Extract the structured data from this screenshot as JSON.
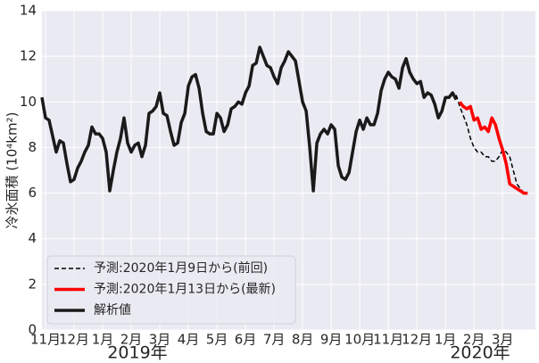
{
  "chart_data": {
    "type": "line",
    "ylabel": "冷氷面積 (10⁴km²)",
    "annotations": [
      "2019年",
      "2020年"
    ],
    "xlim": [
      -0.125,
      17.15
    ],
    "ylim": [
      0,
      14
    ],
    "yticks": [
      0,
      2,
      4,
      6,
      8,
      10,
      12,
      14
    ],
    "xticks": [
      {
        "value": 0,
        "label": "11月"
      },
      {
        "value": 1,
        "label": "12月"
      },
      {
        "value": 2,
        "label": "1月"
      },
      {
        "value": 3,
        "label": "2月"
      },
      {
        "value": 4,
        "label": "3月"
      },
      {
        "value": 5,
        "label": "4月"
      },
      {
        "value": 6,
        "label": "5月"
      },
      {
        "value": 7,
        "label": "6月"
      },
      {
        "value": 8,
        "label": "7月"
      },
      {
        "value": 9,
        "label": "8月"
      },
      {
        "value": 10,
        "label": "9月"
      },
      {
        "value": 11,
        "label": "10月"
      },
      {
        "value": 12,
        "label": "11月"
      },
      {
        "value": 13,
        "label": "12月"
      },
      {
        "value": 14,
        "label": "1月"
      },
      {
        "value": 15,
        "label": "2月"
      },
      {
        "value": 16,
        "label": "3月"
      }
    ],
    "grid": true,
    "legend": "lower left",
    "series": [
      {
        "name": "予測:2020年1月9日から(前回)",
        "color": "#000000",
        "dash": true,
        "width": 1.5,
        "x": [
          14.375,
          14.5,
          14.625,
          14.75,
          14.875,
          15,
          15.125,
          15.25,
          15.375,
          15.5,
          15.625,
          15.75,
          15.875,
          16,
          16.125,
          16.25,
          16.375,
          16.5,
          16.625,
          16.75,
          16.875
        ],
        "values": [
          10.3,
          9.8,
          9.4,
          9.0,
          8.4,
          8.0,
          7.8,
          7.8,
          7.6,
          7.6,
          7.4,
          7.4,
          7.6,
          7.9,
          7.8,
          7.6,
          7.0,
          6.4,
          6.2,
          6.0,
          6.0
        ]
      },
      {
        "name": "予測:2020年1月13日から(最新)",
        "color": "#ff0000",
        "dash": false,
        "width": 3.5,
        "x": [
          14.5,
          14.625,
          14.75,
          14.875,
          15,
          15.125,
          15.25,
          15.375,
          15.5,
          15.625,
          15.75,
          15.875,
          16,
          16.125,
          16.25,
          16.375,
          16.5,
          16.625,
          16.75,
          16.875
        ],
        "values": [
          10.0,
          9.8,
          9.7,
          9.8,
          9.2,
          9.3,
          8.8,
          8.9,
          8.7,
          9.3,
          9.0,
          8.4,
          7.9,
          7.3,
          6.4,
          6.3,
          6.2,
          6.1,
          6.0,
          6.0
        ]
      },
      {
        "name": "解析値",
        "color": "#1a1a1a",
        "dash": false,
        "width": 3.5,
        "x": [
          -0.125,
          0,
          0.125,
          0.25,
          0.375,
          0.5,
          0.625,
          0.75,
          0.875,
          1,
          1.125,
          1.25,
          1.375,
          1.5,
          1.625,
          1.75,
          1.875,
          2,
          2.125,
          2.25,
          2.375,
          2.5,
          2.625,
          2.75,
          2.875,
          3,
          3.125,
          3.25,
          3.375,
          3.5,
          3.625,
          3.75,
          3.875,
          4,
          4.125,
          4.25,
          4.375,
          4.5,
          4.625,
          4.75,
          4.875,
          5,
          5.125,
          5.25,
          5.375,
          5.5,
          5.625,
          5.75,
          5.875,
          6,
          6.125,
          6.25,
          6.375,
          6.5,
          6.625,
          6.75,
          6.875,
          7,
          7.125,
          7.25,
          7.375,
          7.5,
          7.625,
          7.75,
          7.875,
          8,
          8.125,
          8.25,
          8.375,
          8.5,
          8.625,
          8.75,
          8.875,
          9,
          9.125,
          9.25,
          9.375,
          9.5,
          9.625,
          9.75,
          9.875,
          10,
          10.125,
          10.25,
          10.375,
          10.5,
          10.625,
          10.75,
          10.875,
          11,
          11.125,
          11.25,
          11.375,
          11.5,
          11.625,
          11.75,
          11.875,
          12,
          12.125,
          12.25,
          12.375,
          12.5,
          12.625,
          12.75,
          12.875,
          13,
          13.125,
          13.25,
          13.375,
          13.5,
          13.625,
          13.75,
          13.875,
          14,
          14.125,
          14.25,
          14.375
        ],
        "values": [
          10.2,
          9.3,
          9.2,
          8.5,
          7.8,
          8.3,
          8.2,
          7.3,
          6.5,
          6.6,
          7.1,
          7.4,
          7.8,
          8.1,
          8.9,
          8.6,
          8.6,
          8.4,
          7.8,
          6.1,
          7.0,
          7.8,
          8.4,
          9.3,
          8.2,
          7.8,
          8.1,
          8.2,
          7.6,
          8.1,
          9.5,
          9.6,
          9.8,
          10.4,
          9.5,
          9.4,
          8.7,
          8.1,
          8.2,
          9.1,
          9.5,
          10.7,
          11.1,
          11.2,
          10.6,
          9.5,
          8.7,
          8.6,
          8.6,
          9.5,
          9.3,
          8.7,
          9.0,
          9.7,
          9.8,
          10.0,
          9.9,
          10.4,
          10.7,
          11.6,
          11.7,
          12.4,
          12.0,
          11.6,
          11.5,
          11.1,
          10.8,
          11.5,
          11.8,
          12.2,
          12.0,
          11.8,
          10.9,
          10.0,
          9.6,
          8.0,
          6.1,
          8.2,
          8.6,
          8.8,
          8.6,
          9.0,
          8.8,
          7.2,
          6.7,
          6.6,
          6.9,
          7.8,
          8.7,
          9.2,
          8.8,
          9.3,
          9.0,
          9.0,
          9.5,
          10.5,
          11.0,
          11.3,
          11.1,
          11.0,
          10.6,
          11.5,
          11.9,
          11.3,
          11.0,
          10.8,
          10.9,
          10.2,
          10.4,
          10.3,
          9.9,
          9.3,
          9.6,
          10.2,
          10.2,
          10.4,
          10.1
        ]
      }
    ]
  }
}
